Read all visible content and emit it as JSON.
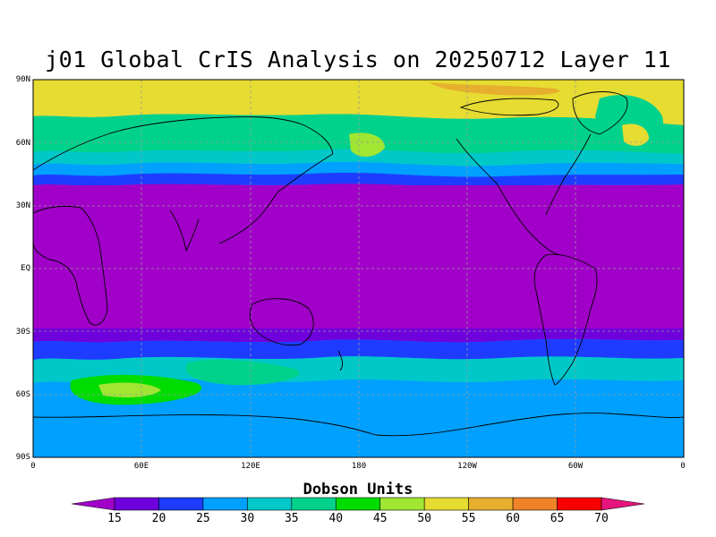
{
  "title": "j01 Global CrIS Analysis on 20250712 Layer 11",
  "axes": {
    "y_ticks": [
      "90N",
      "60N",
      "30N",
      "EQ",
      "30S",
      "60S",
      "90S"
    ],
    "x_ticks": [
      "0",
      "60E",
      "120E",
      "180",
      "120W",
      "60W",
      "0"
    ]
  },
  "colorbar": {
    "title": "Dobson Units",
    "labels": [
      "15",
      "20",
      "25",
      "30",
      "35",
      "40",
      "45",
      "50",
      "55",
      "60",
      "65",
      "70"
    ],
    "colors": [
      "#a000c8",
      "#6e00dc",
      "#1e3cff",
      "#00a0ff",
      "#00c8c8",
      "#00d28c",
      "#00dc00",
      "#a0e632",
      "#e6dc32",
      "#e6af2d",
      "#f08228",
      "#fa0000",
      "#e6147d"
    ]
  },
  "map": {
    "projection": "cylindrical equidistant",
    "gridlines": "dashed",
    "coastlines": true,
    "lat_range": [
      -90,
      90
    ],
    "lon_range": [
      0,
      360
    ]
  }
}
